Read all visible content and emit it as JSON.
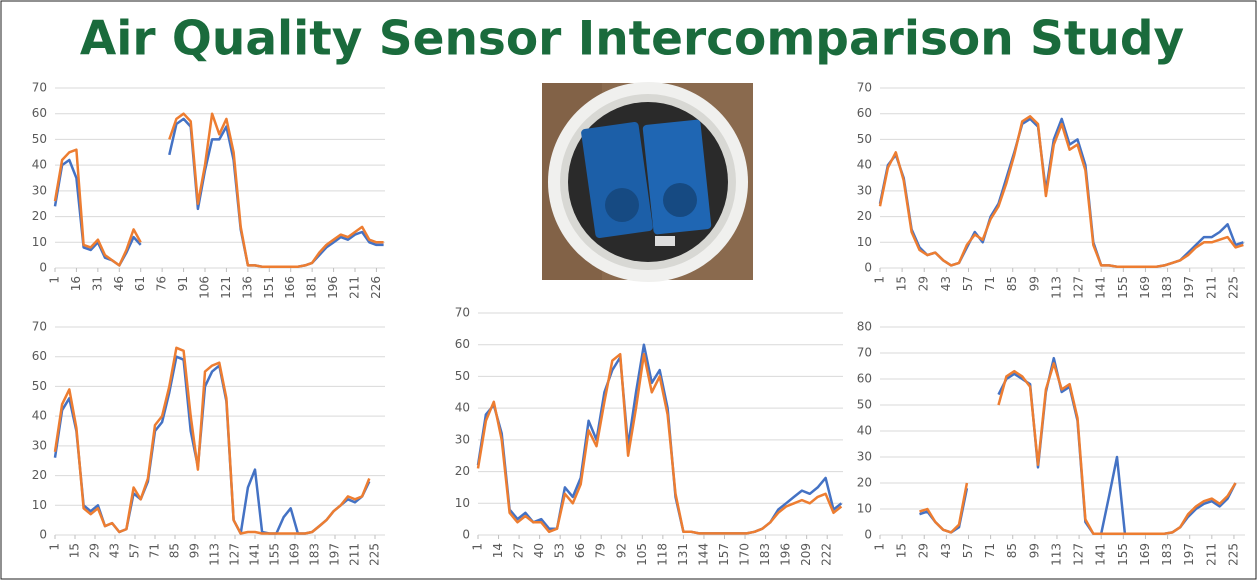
{
  "title": "Air Quality Sensor Intercomparison Study",
  "chart_data": [
    {
      "type": "line",
      "x": [
        1,
        6,
        11,
        16,
        21,
        26,
        31,
        36,
        41,
        46,
        51,
        56,
        61,
        66,
        71,
        76,
        81,
        86,
        91,
        96,
        101,
        106,
        111,
        116,
        121,
        126,
        131,
        136,
        141,
        146,
        151,
        156,
        161,
        166,
        171,
        176,
        181,
        186,
        191,
        196,
        201,
        206,
        211,
        216,
        221,
        226,
        231
      ],
      "xlim": [
        1,
        232
      ],
      "xticks": [
        1,
        16,
        31,
        46,
        61,
        76,
        91,
        106,
        121,
        136,
        151,
        166,
        181,
        196,
        211,
        226
      ],
      "ylim": [
        0,
        70
      ],
      "yticks": [
        0,
        10,
        20,
        30,
        40,
        50,
        60,
        70
      ],
      "grid": true,
      "series": [
        {
          "color": "#4472c4",
          "values": [
            24,
            40,
            42,
            35,
            8,
            7,
            10,
            4,
            3,
            1,
            6,
            12,
            9,
            null,
            null,
            null,
            44,
            56,
            58,
            55,
            23,
            38,
            50,
            50,
            55,
            42,
            15,
            1,
            1,
            0.5,
            0.5,
            0.5,
            0.5,
            0.5,
            0.5,
            1,
            2,
            5,
            8,
            10,
            12,
            11,
            13,
            14,
            10,
            9,
            9
          ]
        },
        {
          "color": "#ed7d31",
          "values": [
            26,
            42,
            45,
            46,
            9,
            8,
            11,
            5,
            3,
            1,
            7,
            15,
            10,
            null,
            null,
            null,
            50,
            58,
            60,
            57,
            25,
            40,
            60,
            52,
            58,
            45,
            16,
            1,
            1,
            0.5,
            0.5,
            0.5,
            0.5,
            0.5,
            0.5,
            1,
            2,
            6,
            9,
            11,
            13,
            12,
            14,
            16,
            11,
            10,
            10
          ]
        }
      ]
    },
    {
      "type": "line",
      "x": [
        1,
        6,
        11,
        16,
        21,
        26,
        31,
        36,
        41,
        46,
        51,
        56,
        61,
        66,
        71,
        76,
        81,
        86,
        91,
        96,
        101,
        106,
        111,
        116,
        121,
        126,
        131,
        136,
        141,
        146,
        151,
        156,
        161,
        166,
        171,
        176,
        181,
        186,
        191,
        196,
        201,
        206,
        211,
        216,
        221,
        226,
        231
      ],
      "xlim": [
        1,
        232
      ],
      "xticks": [
        1,
        15,
        29,
        43,
        57,
        71,
        85,
        99,
        113,
        127,
        141,
        155,
        169,
        183,
        197,
        211,
        225
      ],
      "ylim": [
        0,
        70
      ],
      "yticks": [
        0,
        10,
        20,
        30,
        40,
        50,
        60,
        70
      ],
      "grid": true,
      "series": [
        {
          "color": "#4472c4",
          "values": [
            25,
            40,
            44,
            35,
            15,
            8,
            5,
            6,
            3,
            1,
            2,
            8,
            14,
            10,
            20,
            25,
            35,
            45,
            56,
            58,
            55,
            30,
            50,
            58,
            48,
            50,
            40,
            10,
            1,
            1,
            0.5,
            0.5,
            0.5,
            0.5,
            0.5,
            0.5,
            1,
            2,
            3,
            6,
            9,
            12,
            12,
            14,
            17,
            9,
            10
          ]
        },
        {
          "color": "#ed7d31",
          "values": [
            24,
            39,
            45,
            34,
            14,
            7,
            5,
            6,
            3,
            1,
            2,
            9,
            13,
            11,
            19,
            24,
            33,
            44,
            57,
            59,
            56,
            28,
            48,
            56,
            46,
            48,
            38,
            9,
            1,
            1,
            0.5,
            0.5,
            0.5,
            0.5,
            0.5,
            0.5,
            1,
            2,
            3,
            5,
            8,
            10,
            10,
            11,
            12,
            8,
            9
          ]
        }
      ]
    },
    {
      "type": "line",
      "x": [
        1,
        6,
        11,
        16,
        21,
        26,
        31,
        36,
        41,
        46,
        51,
        56,
        61,
        66,
        71,
        76,
        81,
        86,
        91,
        96,
        101,
        106,
        111,
        116,
        121,
        126,
        131,
        136,
        141,
        146,
        151,
        156,
        161,
        166,
        171,
        176,
        181,
        186,
        191,
        196,
        201,
        206,
        211,
        216,
        221,
        226,
        231
      ],
      "xlim": [
        1,
        232
      ],
      "xticks": [
        1,
        15,
        29,
        43,
        57,
        71,
        85,
        99,
        113,
        127,
        141,
        155,
        169,
        183,
        197,
        211,
        225
      ],
      "ylim": [
        0,
        70
      ],
      "yticks": [
        0,
        10,
        20,
        30,
        40,
        50,
        60,
        70
      ],
      "grid": true,
      "series": [
        {
          "color": "#4472c4",
          "values": [
            26,
            42,
            46,
            35,
            10,
            8,
            10,
            3,
            4,
            1,
            2,
            14,
            12,
            18,
            35,
            38,
            48,
            60,
            59,
            35,
            23,
            50,
            55,
            57,
            45,
            5,
            0.5,
            16,
            22,
            1,
            0.5,
            0.5,
            6,
            9,
            0.5,
            0.5,
            1,
            3,
            5,
            8,
            10,
            12,
            11,
            13,
            18,
            null,
            null
          ]
        },
        {
          "color": "#ed7d31",
          "values": [
            28,
            44,
            49,
            36,
            9,
            7,
            9,
            3,
            4,
            1,
            2,
            16,
            12,
            19,
            37,
            40,
            50,
            63,
            62,
            40,
            22,
            55,
            57,
            58,
            46,
            5,
            0.5,
            1,
            1,
            0.5,
            0.5,
            0.5,
            0.5,
            0.5,
            0.5,
            0.5,
            1,
            3,
            5,
            8,
            10,
            13,
            12,
            13,
            19,
            null,
            null
          ]
        }
      ]
    },
    {
      "type": "line",
      "x": [
        1,
        6,
        11,
        16,
        21,
        26,
        31,
        36,
        41,
        46,
        51,
        56,
        61,
        66,
        71,
        76,
        81,
        86,
        91,
        96,
        101,
        106,
        111,
        116,
        121,
        126,
        131,
        136,
        141,
        146,
        151,
        156,
        161,
        166,
        171,
        176,
        181,
        186,
        191,
        196,
        201,
        206,
        211,
        216,
        221,
        226,
        231
      ],
      "xlim": [
        1,
        232
      ],
      "xticks": [
        1,
        14,
        27,
        40,
        53,
        66,
        79,
        92,
        105,
        118,
        131,
        144,
        157,
        170,
        183,
        196,
        209,
        222
      ],
      "ylim": [
        0,
        70
      ],
      "yticks": [
        0,
        10,
        20,
        30,
        40,
        50,
        60,
        70
      ],
      "grid": true,
      "series": [
        {
          "color": "#4472c4",
          "values": [
            22,
            38,
            41,
            32,
            8,
            5,
            7,
            4,
            5,
            2,
            2,
            15,
            12,
            18,
            36,
            30,
            45,
            52,
            56,
            28,
            45,
            60,
            48,
            52,
            40,
            12,
            1,
            1,
            0.5,
            0.5,
            0.5,
            0.5,
            0.5,
            0.5,
            0.5,
            1,
            2,
            4,
            8,
            10,
            12,
            14,
            13,
            15,
            18,
            8,
            10
          ]
        },
        {
          "color": "#ed7d31",
          "values": [
            21,
            36,
            42,
            30,
            7,
            4,
            6,
            4,
            4,
            1,
            2,
            13,
            10,
            16,
            33,
            28,
            42,
            55,
            57,
            25,
            40,
            57,
            45,
            50,
            38,
            13,
            1,
            1,
            0.5,
            0.5,
            0.5,
            0.5,
            0.5,
            0.5,
            0.5,
            1,
            2,
            4,
            7,
            9,
            10,
            11,
            10,
            12,
            13,
            7,
            9
          ]
        }
      ]
    },
    {
      "type": "line",
      "x": [
        1,
        6,
        11,
        16,
        21,
        26,
        31,
        36,
        41,
        46,
        51,
        56,
        61,
        66,
        71,
        76,
        81,
        86,
        91,
        96,
        101,
        106,
        111,
        116,
        121,
        126,
        131,
        136,
        141,
        146,
        151,
        156,
        161,
        166,
        171,
        176,
        181,
        186,
        191,
        196,
        201,
        206,
        211,
        216,
        221,
        226,
        231
      ],
      "xlim": [
        1,
        232
      ],
      "xticks": [
        1,
        15,
        29,
        43,
        57,
        71,
        85,
        99,
        113,
        127,
        141,
        155,
        169,
        183,
        197,
        211,
        225
      ],
      "ylim": [
        0,
        80
      ],
      "yticks": [
        0,
        10,
        20,
        30,
        40,
        50,
        60,
        70,
        80
      ],
      "grid": true,
      "series": [
        {
          "color": "#4472c4",
          "values": [
            null,
            null,
            null,
            null,
            null,
            8,
            9,
            5,
            2,
            1,
            3,
            18,
            null,
            null,
            null,
            54,
            60,
            62,
            60,
            58,
            26,
            55,
            68,
            55,
            57,
            44,
            5,
            0.5,
            0.5,
            15,
            30,
            0.5,
            0.5,
            0.5,
            0.5,
            0.5,
            0.5,
            1,
            3,
            7,
            10,
            12,
            13,
            11,
            14,
            20,
            null
          ]
        },
        {
          "color": "#ed7d31",
          "values": [
            null,
            null,
            null,
            null,
            null,
            9,
            10,
            5,
            2,
            1,
            4,
            20,
            null,
            null,
            null,
            50,
            61,
            63,
            61,
            57,
            27,
            56,
            66,
            56,
            58,
            45,
            6,
            0.5,
            0.5,
            0.5,
            0.5,
            0.5,
            0.5,
            0.5,
            0.5,
            0.5,
            0.5,
            1,
            3,
            8,
            11,
            13,
            14,
            12,
            15,
            20,
            null
          ]
        }
      ]
    }
  ]
}
